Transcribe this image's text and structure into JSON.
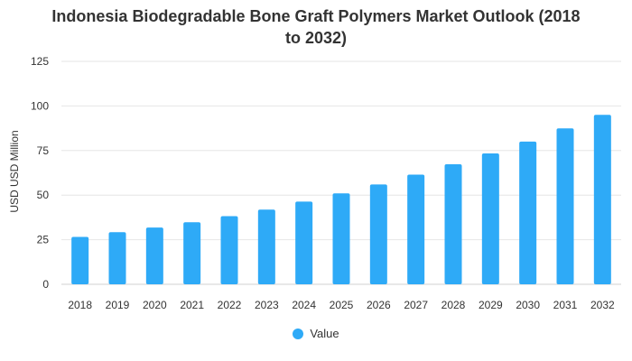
{
  "chart_data": {
    "type": "bar",
    "title_lines": [
      "Indonesia Biodegradable Bone Graft Polymers Market Outlook (2018",
      "to 2032)"
    ],
    "xlabel": "",
    "ylabel": "USD USD Million",
    "categories": [
      "2018",
      "2019",
      "2020",
      "2021",
      "2022",
      "2023",
      "2024",
      "2025",
      "2026",
      "2027",
      "2028",
      "2029",
      "2030",
      "2031",
      "2032"
    ],
    "series": [
      {
        "name": "Value",
        "color": "#2eaaf7",
        "values": [
          26.6,
          29.2,
          31.8,
          34.8,
          38.2,
          41.9,
          46.4,
          51.0,
          56.0,
          61.5,
          67.3,
          73.4,
          80.0,
          87.4,
          95.0
        ]
      }
    ],
    "ylim": [
      0,
      125
    ],
    "yticks": [
      "0",
      "25",
      "50",
      "75",
      "100",
      "125"
    ],
    "grid": true,
    "legend_position": "bottom"
  }
}
